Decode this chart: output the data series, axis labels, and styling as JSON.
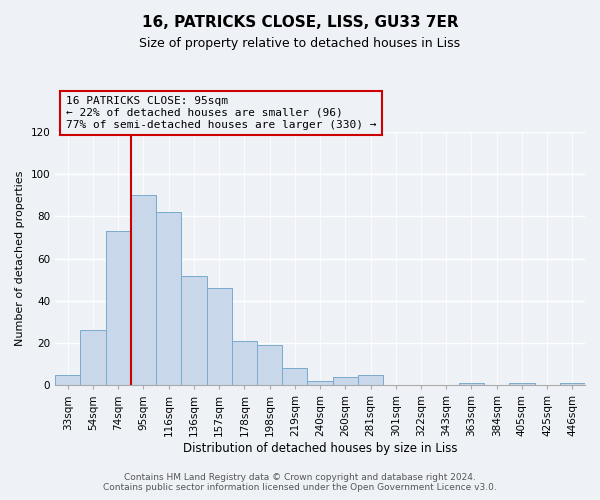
{
  "title": "16, PATRICKS CLOSE, LISS, GU33 7ER",
  "subtitle": "Size of property relative to detached houses in Liss",
  "xlabel": "Distribution of detached houses by size in Liss",
  "ylabel": "Number of detached properties",
  "bar_labels": [
    "33sqm",
    "54sqm",
    "74sqm",
    "95sqm",
    "116sqm",
    "136sqm",
    "157sqm",
    "178sqm",
    "198sqm",
    "219sqm",
    "240sqm",
    "260sqm",
    "281sqm",
    "301sqm",
    "322sqm",
    "343sqm",
    "363sqm",
    "384sqm",
    "405sqm",
    "425sqm",
    "446sqm"
  ],
  "bar_values": [
    5,
    26,
    73,
    90,
    82,
    52,
    46,
    21,
    19,
    8,
    2,
    4,
    5,
    0,
    0,
    0,
    1,
    0,
    1,
    0,
    1
  ],
  "bar_color": "#c8d8ea",
  "bar_edge_color": "#7aaacf",
  "red_line_bar_index": 3,
  "ylim": [
    0,
    120
  ],
  "yticks": [
    0,
    20,
    40,
    60,
    80,
    100,
    120
  ],
  "annotation_title": "16 PATRICKS CLOSE: 95sqm",
  "annotation_line1": "← 22% of detached houses are smaller (96)",
  "annotation_line2": "77% of semi-detached houses are larger (330) →",
  "annotation_box_edge": "#cc0000",
  "red_line_color": "#cc0000",
  "footer_line1": "Contains HM Land Registry data © Crown copyright and database right 2024.",
  "footer_line2": "Contains public sector information licensed under the Open Government Licence v3.0.",
  "background_color": "#eef2f7",
  "grid_color": "#ffffff",
  "title_fontsize": 11,
  "subtitle_fontsize": 9,
  "ylabel_fontsize": 8,
  "xlabel_fontsize": 8.5,
  "tick_fontsize": 7.5,
  "annotation_fontsize": 8,
  "footer_fontsize": 6.5
}
